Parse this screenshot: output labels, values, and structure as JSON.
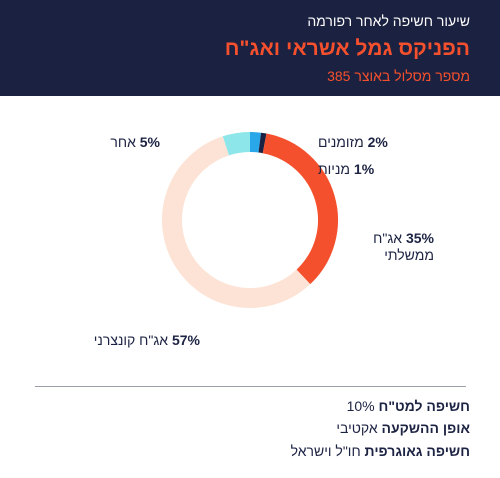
{
  "header": {
    "subtitle": "שיעור חשיפה לאחר רפורמה",
    "title": "הפניקס גמל אשראי ואג\"ח",
    "track": "מספר מסלול באוצר 385"
  },
  "chart_data": {
    "type": "pie",
    "donut": true,
    "slices": [
      {
        "name": "מזומנים",
        "value": 2,
        "label": "2%",
        "color": "#2aa7e8"
      },
      {
        "name": "מניות",
        "value": 1,
        "label": "1%",
        "color": "#1b2140"
      },
      {
        "name": "אג\"ח ממשלתי",
        "value": 35,
        "label": "35%",
        "color": "#f5502d"
      },
      {
        "name": "אג\"ח קונצרני",
        "value": 57,
        "label": "57%",
        "color": "#fde3d5"
      },
      {
        "name": "אחר",
        "value": 5,
        "label": "5%",
        "color": "#8de6ea"
      }
    ],
    "labels": {
      "cash": {
        "pct": "2%",
        "name": "מזומנים"
      },
      "stocks": {
        "pct": "1%",
        "name": "מניות"
      },
      "gov_pct": "35%",
      "gov_name1": "אג\"ח",
      "gov_name2": "ממשלתי",
      "corp": {
        "pct": "57%",
        "name": "אג\"ח קונצרני"
      },
      "other": {
        "pct": "5%",
        "name": "אחר"
      }
    }
  },
  "info": [
    {
      "key": "חשיפה למט\"ח",
      "value": "10%"
    },
    {
      "key": "אופן ההשקעה",
      "value": "אקטיבי"
    },
    {
      "key": "חשיפה גאוגרפית",
      "value": "חו\"ל וישראל"
    }
  ]
}
